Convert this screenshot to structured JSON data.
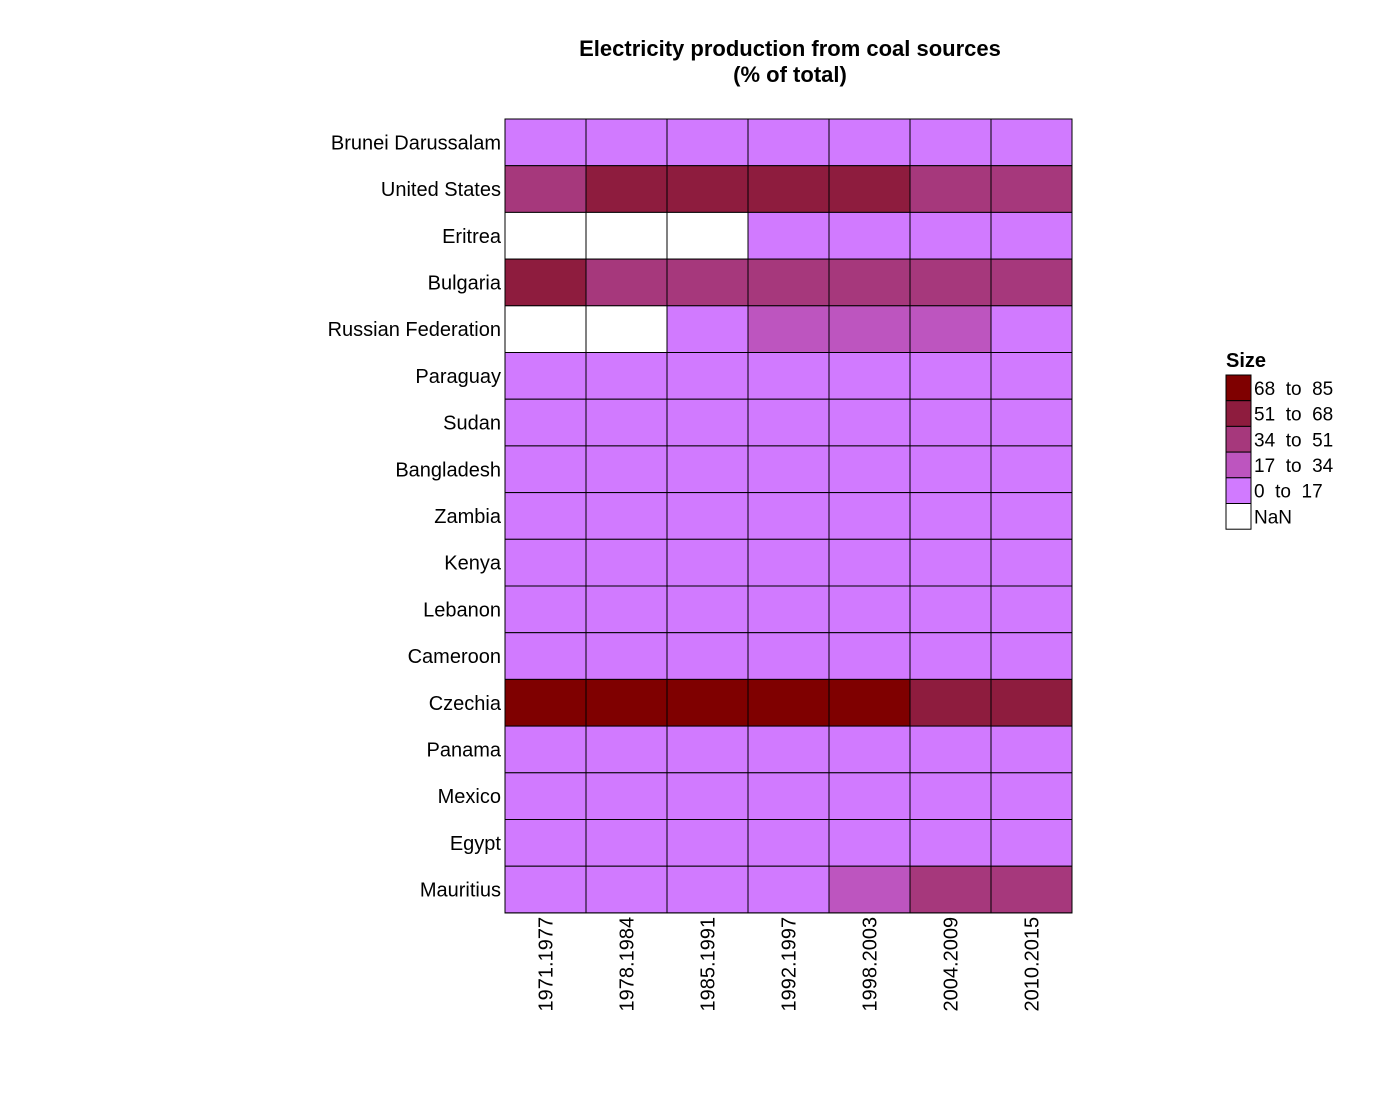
{
  "chart_data": {
    "type": "heatmap",
    "title": [
      "Electricity production from coal sources",
      "(% of total)"
    ],
    "xlabel": "",
    "ylabel": "",
    "x_categories": [
      "1971.1977",
      "1978.1984",
      "1985.1991",
      "1992.1997",
      "1998.2003",
      "2004.2009",
      "2010.2015"
    ],
    "y_categories": [
      "Brunei Darussalam",
      "United States",
      "Eritrea",
      "Bulgaria",
      "Russian Federation",
      "Paraguay",
      "Sudan",
      "Bangladesh",
      "Zambia",
      "Kenya",
      "Lebanon",
      "Cameroon",
      "Czechia",
      "Panama",
      "Mexico",
      "Egypt",
      "Mauritius"
    ],
    "bins": [
      {
        "label": "68  to  85",
        "color": "#7f0000"
      },
      {
        "label": "51  to  68",
        "color": "#8e1c3e"
      },
      {
        "label": "34  to  51",
        "color": "#a6387c"
      },
      {
        "label": "17  to  34",
        "color": "#bd55bf"
      },
      {
        "label": "0  to  17",
        "color": "#d17aff"
      },
      {
        "label": "NaN",
        "color": "#ffffff"
      }
    ],
    "legend_title": "Size",
    "legend_position": "right",
    "grid": false,
    "values": [
      [
        0,
        0,
        0,
        0,
        0,
        0,
        0
      ],
      [
        45,
        55,
        55,
        55,
        55,
        45,
        45
      ],
      [
        null,
        null,
        null,
        0,
        0,
        0,
        0
      ],
      [
        55,
        45,
        45,
        45,
        45,
        45,
        45
      ],
      [
        null,
        null,
        10,
        25,
        25,
        25,
        10
      ],
      [
        0,
        0,
        0,
        0,
        0,
        0,
        0
      ],
      [
        0,
        0,
        0,
        0,
        0,
        0,
        0
      ],
      [
        0,
        0,
        0,
        0,
        0,
        0,
        0
      ],
      [
        0,
        0,
        0,
        0,
        0,
        0,
        0
      ],
      [
        0,
        0,
        0,
        0,
        0,
        0,
        0
      ],
      [
        0,
        0,
        0,
        0,
        0,
        0,
        0
      ],
      [
        0,
        0,
        0,
        0,
        0,
        0,
        0
      ],
      [
        75,
        75,
        75,
        75,
        75,
        60,
        60
      ],
      [
        0,
        0,
        0,
        0,
        0,
        0,
        0
      ],
      [
        5,
        5,
        5,
        5,
        5,
        5,
        5
      ],
      [
        0,
        0,
        0,
        0,
        0,
        0,
        0
      ],
      [
        5,
        5,
        5,
        5,
        25,
        40,
        40
      ]
    ]
  }
}
